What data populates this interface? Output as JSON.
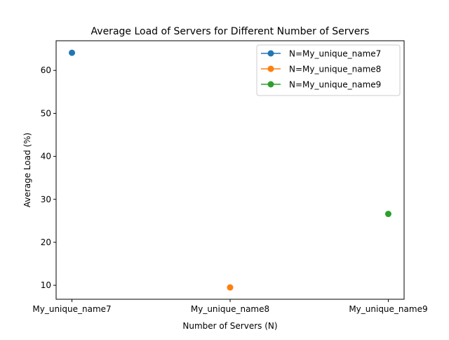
{
  "chart_data": {
    "type": "line",
    "title": "Average Load of Servers for Different Number of Servers",
    "xlabel": "Number of Servers (N)",
    "ylabel": "Average Load (%)",
    "categories": [
      "My_unique_name7",
      "My_unique_name8",
      "My_unique_name9"
    ],
    "yticks": [
      10,
      20,
      30,
      40,
      50,
      60
    ],
    "ylim": [
      6.75,
      66.9
    ],
    "grid": false,
    "legend_position": "top-right",
    "series": [
      {
        "name": "N=My_unique_name7",
        "color": "#1f77b4",
        "points": [
          {
            "x": "My_unique_name7",
            "y": 64.1
          }
        ]
      },
      {
        "name": "N=My_unique_name8",
        "color": "#ff7f0e",
        "points": [
          {
            "x": "My_unique_name8",
            "y": 9.5
          }
        ]
      },
      {
        "name": "N=My_unique_name9",
        "color": "#2ca02c",
        "points": [
          {
            "x": "My_unique_name9",
            "y": 26.6
          }
        ]
      }
    ]
  }
}
